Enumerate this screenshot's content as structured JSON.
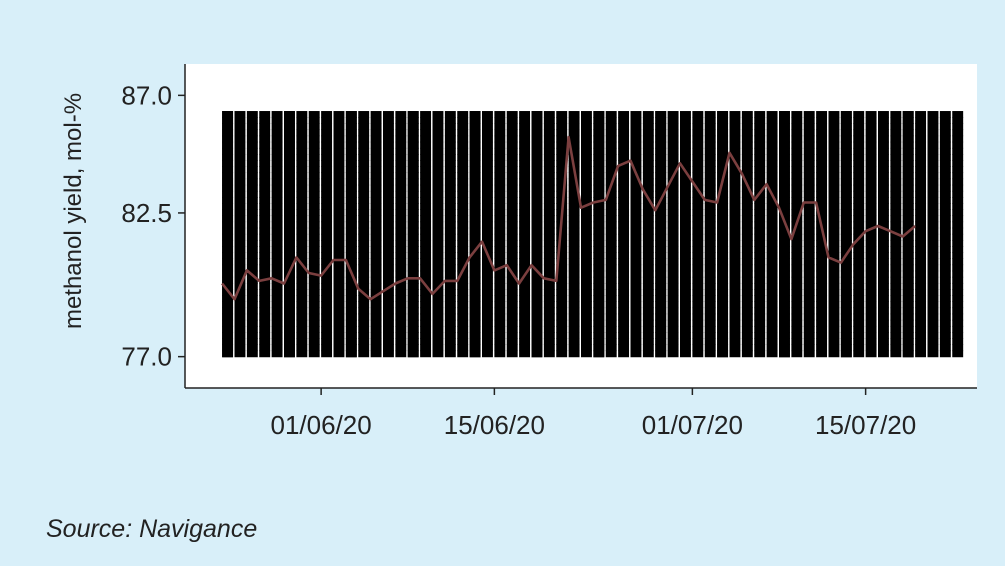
{
  "source": "Source: Navigance",
  "colors": {
    "background": "#d8eff9",
    "plot_background": "#ffffff",
    "line": "#7b3f3f",
    "heatmap_low": "#f1f8fc",
    "heatmap_high": "#0b2a66"
  },
  "chart_data": {
    "type": "line",
    "title": "",
    "xlabel": "",
    "ylabel": "methanol yield, mol-%",
    "ylim": [
      75.8,
      88.2
    ],
    "yticks": [
      77.0,
      82.5,
      87.0
    ],
    "ytick_labels": [
      "77.0",
      "82.5",
      "87.0"
    ],
    "xlim": [
      "2020-05-21",
      "2020-07-24"
    ],
    "xticks": [
      "2020-06-01",
      "2020-06-15",
      "2020-07-01",
      "2020-07-15"
    ],
    "xtick_labels": [
      "01/06/20",
      "15/06/20",
      "01/07/20",
      "15/07/20"
    ],
    "grid": false,
    "legend": "none",
    "background_heatmap": {
      "description": "2D density of measurements (date vs yield), blue shading",
      "x_range": [
        "2020-05-24",
        "2020-07-23"
      ],
      "y_range": [
        77.0,
        86.4
      ]
    },
    "series": [
      {
        "x": [
          "2020-05-24",
          "2020-05-25",
          "2020-05-26",
          "2020-05-27",
          "2020-05-28",
          "2020-05-29",
          "2020-05-30",
          "2020-05-31",
          "2020-06-01",
          "2020-06-02",
          "2020-06-03",
          "2020-06-04",
          "2020-06-05",
          "2020-06-06",
          "2020-06-07",
          "2020-06-08",
          "2020-06-09",
          "2020-06-10",
          "2020-06-11",
          "2020-06-12",
          "2020-06-13",
          "2020-06-14",
          "2020-06-15",
          "2020-06-16",
          "2020-06-17",
          "2020-06-18",
          "2020-06-19",
          "2020-06-20",
          "2020-06-21",
          "2020-06-22",
          "2020-06-23",
          "2020-06-24",
          "2020-06-25",
          "2020-06-26",
          "2020-06-27",
          "2020-06-28",
          "2020-06-29",
          "2020-06-30",
          "2020-07-01",
          "2020-07-02",
          "2020-07-03",
          "2020-07-04",
          "2020-07-05",
          "2020-07-06",
          "2020-07-07",
          "2020-07-08",
          "2020-07-09",
          "2020-07-10",
          "2020-07-11",
          "2020-07-12",
          "2020-07-13",
          "2020-07-14",
          "2020-07-15",
          "2020-07-16",
          "2020-07-17",
          "2020-07-18",
          "2020-07-19"
        ],
        "values": [
          79.8,
          79.2,
          80.3,
          79.9,
          80.0,
          79.8,
          80.8,
          80.2,
          80.1,
          80.7,
          80.7,
          79.6,
          79.2,
          79.5,
          79.8,
          80.0,
          80.0,
          79.4,
          79.9,
          79.9,
          80.8,
          81.4,
          80.3,
          80.5,
          79.8,
          80.5,
          80.0,
          79.9,
          85.4,
          82.7,
          82.9,
          83.0,
          84.3,
          84.5,
          83.4,
          82.6,
          83.5,
          84.4,
          83.7,
          83.0,
          82.9,
          84.8,
          84.0,
          83.0,
          83.6,
          82.7,
          81.5,
          82.9,
          82.9,
          80.8,
          80.6,
          81.3,
          81.8,
          82.0,
          81.8,
          81.6,
          82.0
        ]
      }
    ]
  }
}
